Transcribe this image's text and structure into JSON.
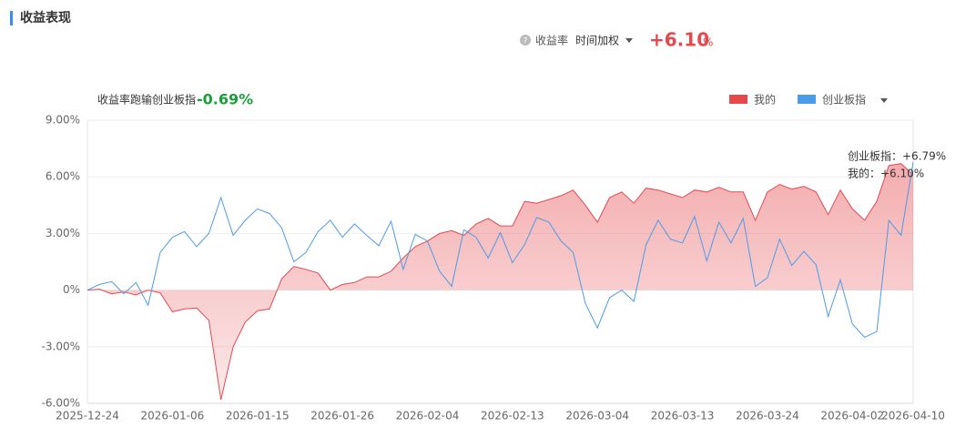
{
  "header": {
    "title": "收益表现"
  },
  "summary": {
    "metric": "收益率",
    "method": "时间加权",
    "value": "+6.10",
    "unit": "%"
  },
  "chart_data": {
    "type": "line",
    "annotation": "收益率跑输创业板指",
    "annotation_value": "-0.69%",
    "categories": [
      "2025-12-24",
      null,
      null,
      null,
      null,
      null,
      null,
      "2026-01-06",
      null,
      null,
      null,
      null,
      null,
      null,
      "2026-01-15",
      null,
      null,
      null,
      null,
      null,
      null,
      "2026-01-26",
      null,
      null,
      null,
      null,
      null,
      null,
      "2026-02-04",
      null,
      null,
      null,
      null,
      null,
      null,
      "2026-02-13",
      null,
      null,
      null,
      null,
      null,
      null,
      "2026-03-04",
      null,
      null,
      null,
      null,
      null,
      null,
      "2026-03-13",
      null,
      null,
      null,
      null,
      null,
      null,
      "2026-03-24",
      null,
      null,
      null,
      null,
      null,
      null,
      "2026-04-02",
      null,
      null,
      null,
      null,
      "2026-04-10"
    ],
    "series": [
      {
        "name": "我的",
        "color": "#e5484d",
        "area": true,
        "values": [
          0,
          0.05,
          -0.2,
          -0.1,
          -0.25,
          0,
          -0.15,
          -1.15,
          -1.0,
          -0.95,
          -1.6,
          -5.8,
          -3.0,
          -1.7,
          -1.1,
          -1.0,
          0.6,
          1.25,
          1.1,
          0.9,
          0,
          0.3,
          0.4,
          0.7,
          0.7,
          1.0,
          1.7,
          2.3,
          2.6,
          3.0,
          3.15,
          2.9,
          3.5,
          3.8,
          3.4,
          3.4,
          4.7,
          4.6,
          4.8,
          5.0,
          5.3,
          4.5,
          3.6,
          4.9,
          5.2,
          4.6,
          5.4,
          5.3,
          5.1,
          4.9,
          5.3,
          5.2,
          5.45,
          5.2,
          5.2,
          3.7,
          5.2,
          5.6,
          5.35,
          5.5,
          5.2,
          4.0,
          5.3,
          4.3,
          3.7,
          4.7,
          6.6,
          6.7,
          6.1
        ]
      },
      {
        "name": "创业板指",
        "color": "#4c9be8",
        "area": false,
        "values": [
          0,
          0.3,
          0.45,
          -0.2,
          0.4,
          -0.8,
          2.0,
          2.8,
          3.1,
          2.3,
          3.0,
          4.9,
          2.9,
          3.7,
          4.3,
          4.05,
          3.3,
          1.5,
          2.0,
          3.1,
          3.7,
          2.8,
          3.5,
          2.9,
          2.35,
          3.65,
          1.1,
          2.95,
          2.6,
          1.0,
          0.2,
          3.2,
          2.8,
          1.7,
          3.05,
          1.45,
          2.4,
          3.85,
          3.6,
          2.6,
          2.0,
          -0.7,
          -2.0,
          -0.4,
          0,
          -0.6,
          2.4,
          3.7,
          2.7,
          2.5,
          3.9,
          1.55,
          3.6,
          2.5,
          3.8,
          0.2,
          0.65,
          2.7,
          1.3,
          2.05,
          1.35,
          -1.4,
          0.55,
          -1.8,
          -2.5,
          -2.2,
          3.7,
          2.9,
          6.79
        ]
      }
    ],
    "ylim": [
      -6,
      9
    ],
    "yticks": [
      {
        "value": 9,
        "label": "9.00%"
      },
      {
        "value": 6,
        "label": "6.00%"
      },
      {
        "value": 3,
        "label": "3.00%"
      },
      {
        "value": 0,
        "label": "0%"
      },
      {
        "value": -3,
        "label": "-3.00%"
      },
      {
        "value": -6,
        "label": "-6.00%"
      }
    ],
    "grid": true,
    "legend": "top-right",
    "tooltip": [
      "创业板指：+6.79%",
      "我的：+6.10%"
    ]
  }
}
